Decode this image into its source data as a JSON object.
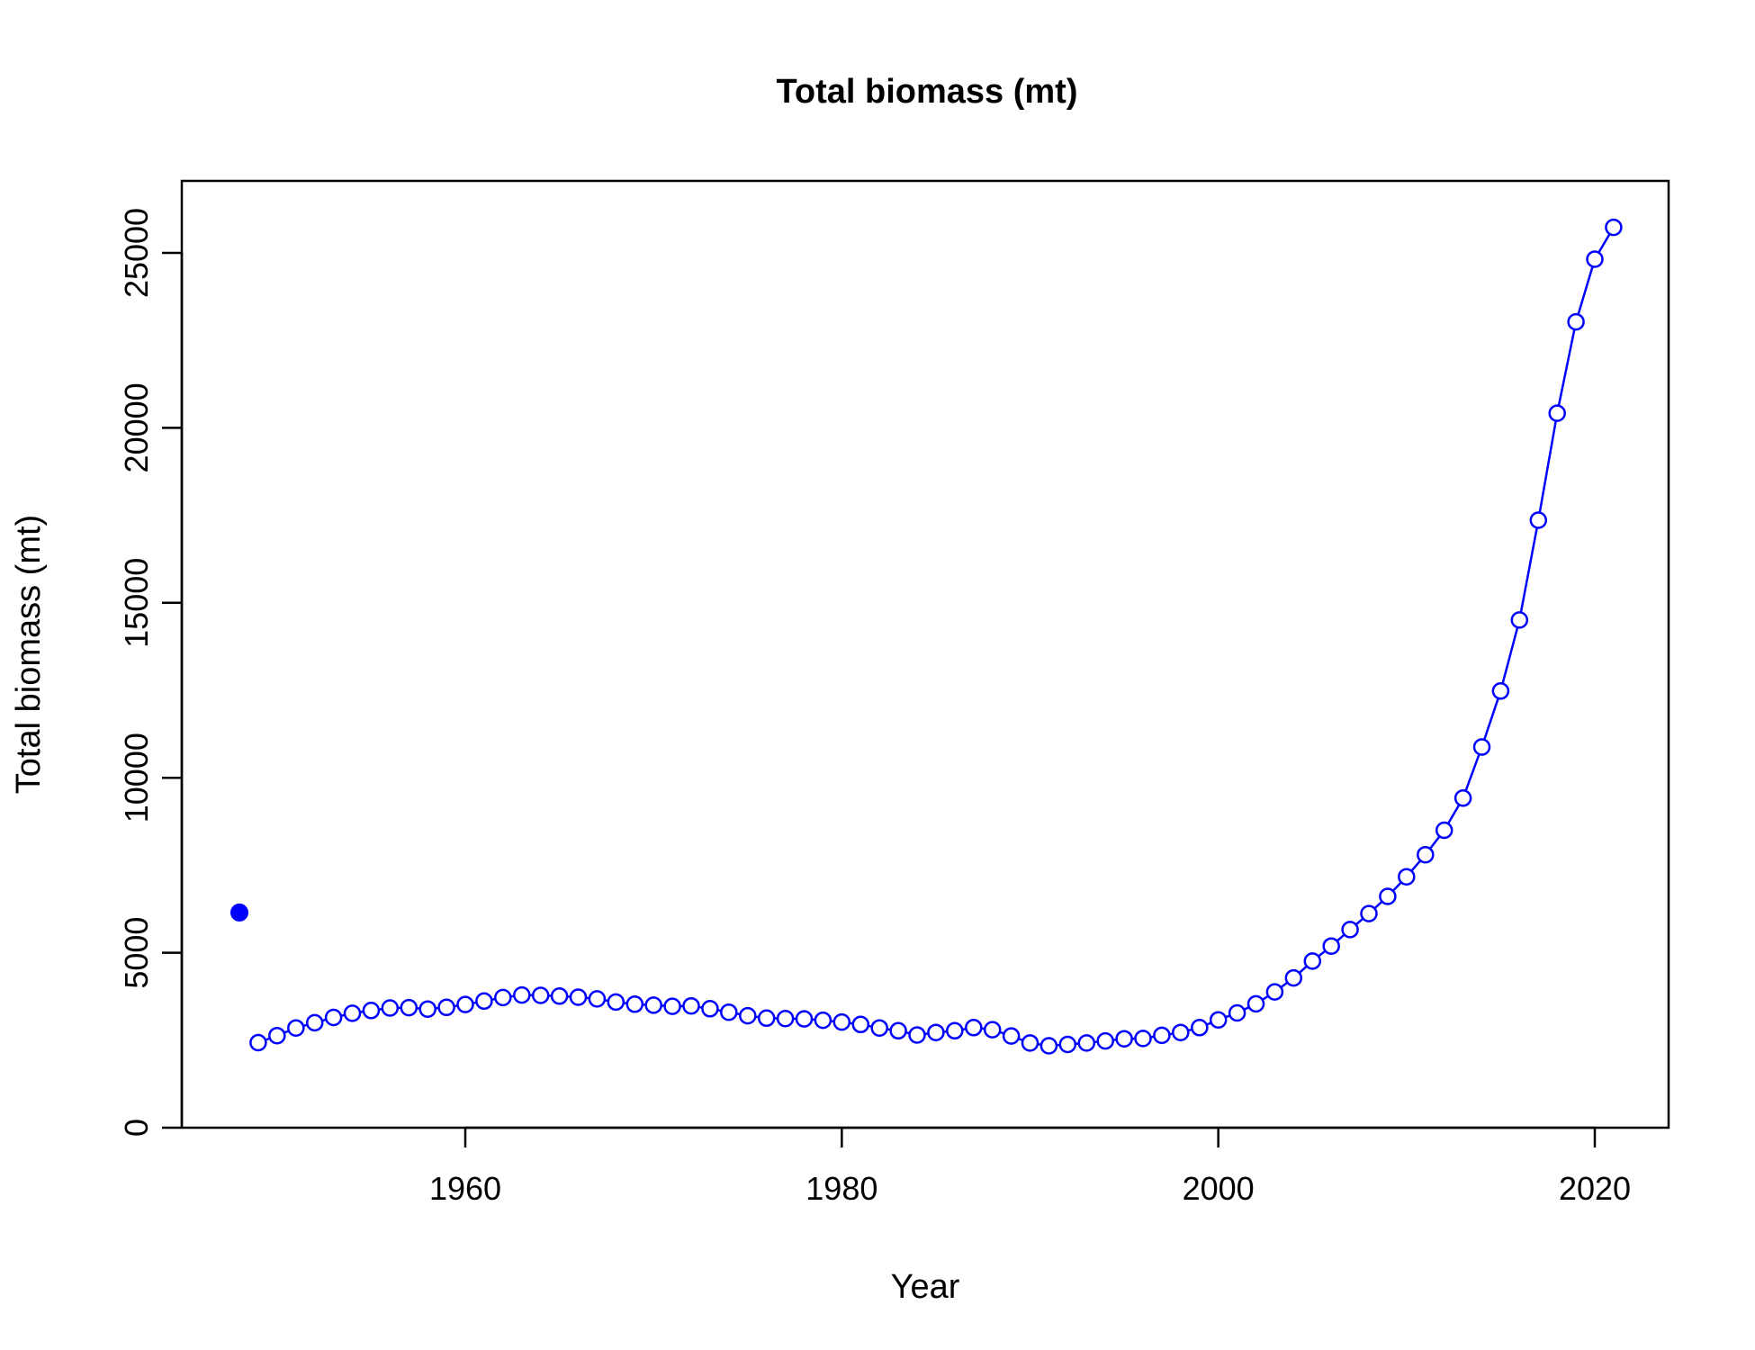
{
  "chart_data": {
    "type": "line",
    "title": "Total biomass (mt)",
    "xlabel": "Year",
    "ylabel": "Total biomass (mt)",
    "xlim": [
      1945,
      2024
    ],
    "ylim": [
      0,
      26000
    ],
    "x_ticks": [
      1960,
      1980,
      2000,
      2020
    ],
    "y_ticks": [
      0,
      5000,
      10000,
      15000,
      20000,
      25000
    ],
    "grid": false,
    "legend": "none",
    "color": "#0000ff",
    "initial_point": {
      "x": 1948,
      "y": 6150
    },
    "series": [
      {
        "x": [
          1949,
          1950,
          1951,
          1952,
          1953,
          1954,
          1955,
          1956,
          1957,
          1958,
          1959,
          1960,
          1961,
          1962,
          1963,
          1964,
          1965,
          1966,
          1967,
          1968,
          1969,
          1970,
          1971,
          1972,
          1973,
          1974,
          1975,
          1976,
          1977,
          1978,
          1979,
          1980,
          1981,
          1982,
          1983,
          1984,
          1985,
          1986,
          1987,
          1988,
          1989,
          1990,
          1991,
          1992,
          1993,
          1994,
          1995,
          1996,
          1997,
          1998,
          1999,
          2000,
          2001,
          2002,
          2003,
          2004,
          2005,
          2006,
          2007,
          2008,
          2009,
          2010,
          2011,
          2012,
          2013,
          2014,
          2015,
          2016,
          2017,
          2018,
          2019,
          2020,
          2021
        ],
        "y": [
          2430,
          2630,
          2850,
          3000,
          3150,
          3270,
          3350,
          3420,
          3430,
          3390,
          3440,
          3520,
          3620,
          3720,
          3790,
          3780,
          3760,
          3730,
          3680,
          3590,
          3530,
          3500,
          3470,
          3480,
          3400,
          3300,
          3200,
          3130,
          3120,
          3110,
          3070,
          3020,
          2950,
          2850,
          2770,
          2650,
          2720,
          2770,
          2860,
          2800,
          2620,
          2420,
          2340,
          2380,
          2420,
          2480,
          2540,
          2550,
          2640,
          2720,
          2860,
          3080,
          3280,
          3540,
          3880,
          4280,
          4760,
          5190,
          5660,
          6120,
          6610,
          7170,
          7800,
          8500,
          9420,
          10880,
          12480,
          14510,
          17360,
          20420,
          23030,
          24820,
          25730
        ]
      }
    ]
  }
}
